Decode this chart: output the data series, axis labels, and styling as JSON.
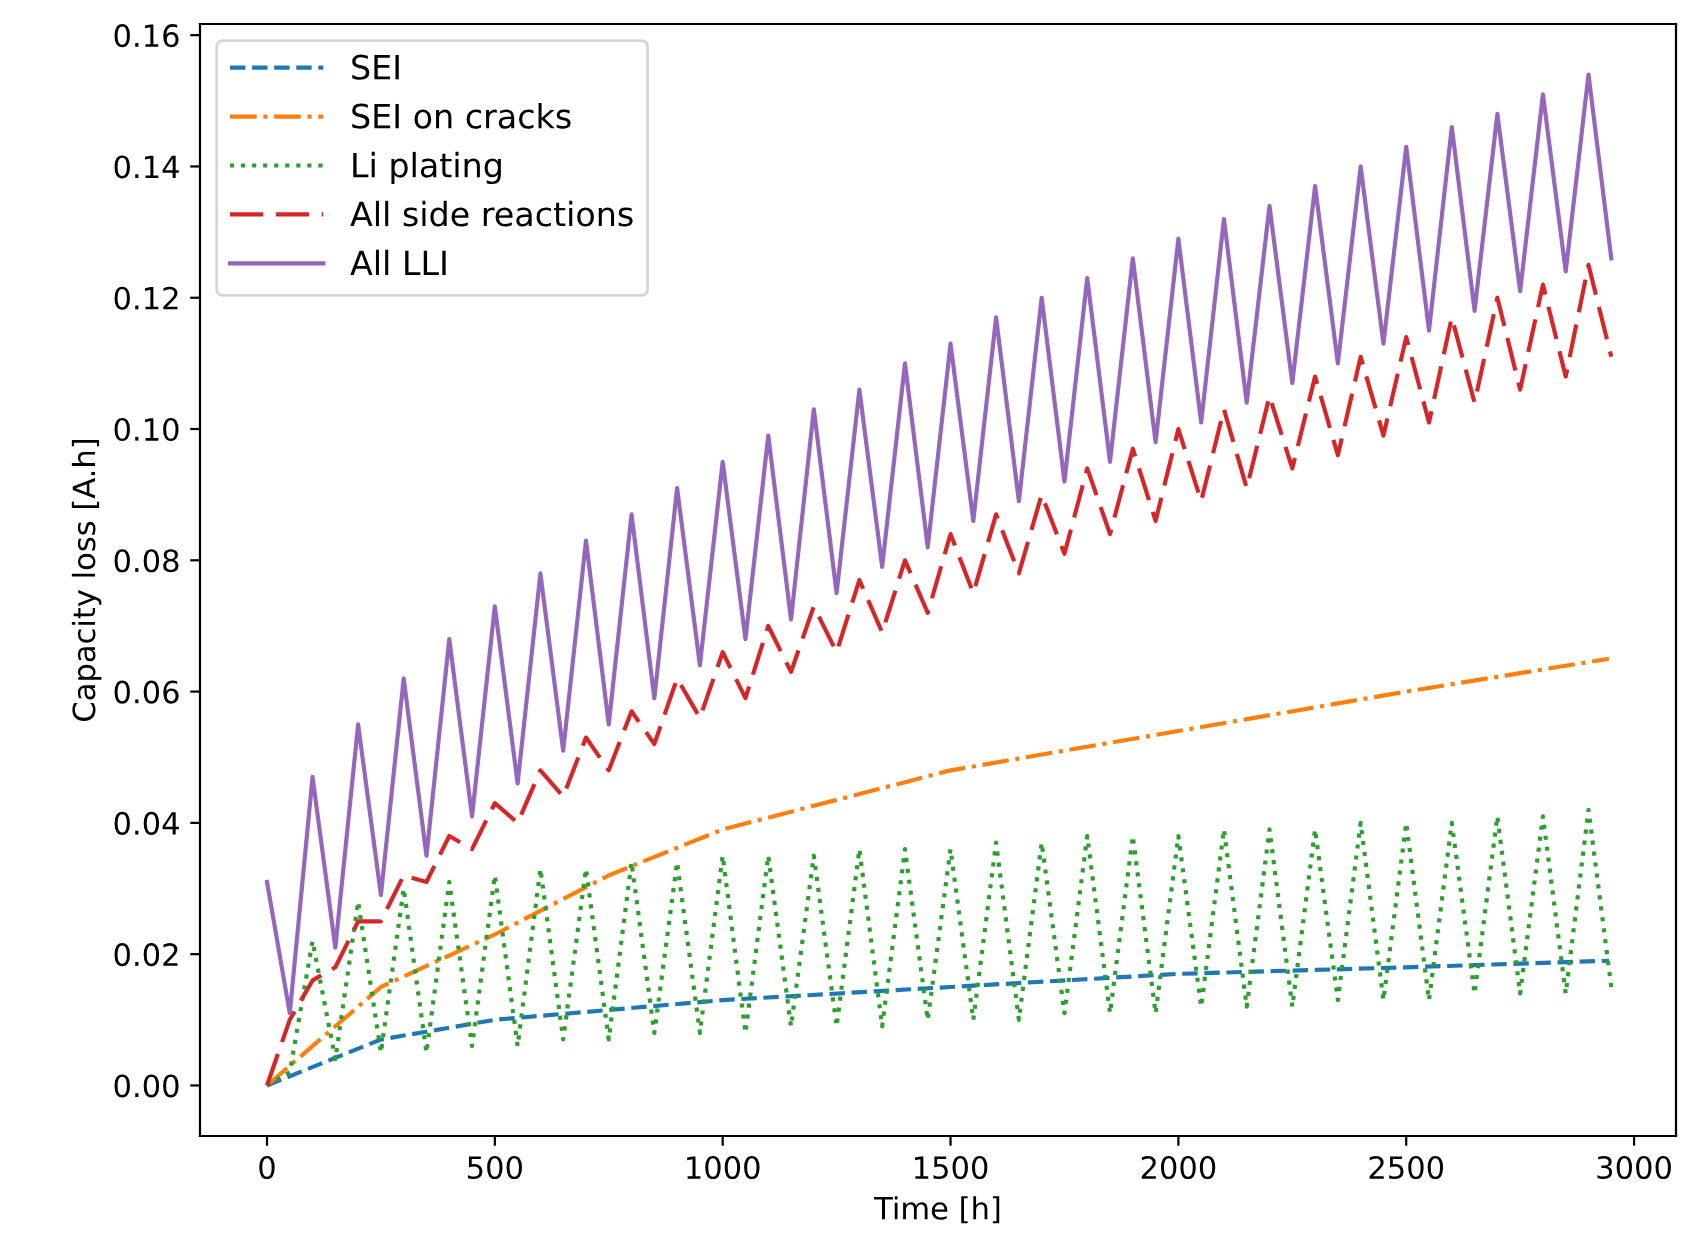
{
  "chart_data": {
    "type": "line",
    "xlabel": "Time [h]",
    "ylabel": "Capacity loss [A.h]",
    "xlim": [
      -147,
      3092
    ],
    "ylim": [
      -0.0077,
      0.1617
    ],
    "xticks": [
      0,
      500,
      1000,
      1500,
      2000,
      2500,
      3000
    ],
    "yticks": [
      {
        "value": 0,
        "label": "0.00"
      },
      {
        "value": 0.02,
        "label": "0.02"
      },
      {
        "value": 0.04,
        "label": "0.04"
      },
      {
        "value": 0.06,
        "label": "0.06"
      },
      {
        "value": 0.08,
        "label": "0.08"
      },
      {
        "value": 0.1,
        "label": "0.10"
      },
      {
        "value": 0.12,
        "label": "0.12"
      },
      {
        "value": 0.14,
        "label": "0.14"
      },
      {
        "value": 0.16,
        "label": "0.16"
      }
    ],
    "grid": false,
    "legend": "top left",
    "marker": "none",
    "series": [
      {
        "name": "SEI",
        "color": "#1f77b4",
        "line_style": "dashed",
        "x": [
          0,
          250,
          500,
          1000,
          1500,
          2000,
          2500,
          2945
        ],
        "values": [
          0,
          0.007,
          0.01,
          0.013,
          0.015,
          0.017,
          0.018,
          0.019
        ]
      },
      {
        "name": "SEI on cracks",
        "color": "#ff7f0e",
        "line_style": "dashdot",
        "x": [
          0,
          250,
          500,
          750,
          1000,
          1500,
          2000,
          2500,
          2945
        ],
        "values": [
          0,
          0.015,
          0.023,
          0.032,
          0.039,
          0.048,
          0.054,
          0.06,
          0.065
        ]
      },
      {
        "name": "Li plating",
        "color": "#2ca02c",
        "line_style": "dotted",
        "x": [
          0,
          50,
          100,
          150,
          200,
          250,
          300,
          350,
          400,
          450,
          500,
          550,
          600,
          650,
          700,
          750,
          800,
          850,
          900,
          950,
          1000,
          1050,
          1100,
          1150,
          1200,
          1250,
          1300,
          1350,
          1400,
          1450,
          1500,
          1550,
          1600,
          1650,
          1700,
          1750,
          1800,
          1850,
          1900,
          1950,
          2000,
          2050,
          2100,
          2150,
          2200,
          2250,
          2300,
          2350,
          2400,
          2450,
          2500,
          2550,
          2600,
          2650,
          2700,
          2750,
          2800,
          2850,
          2900,
          2950
        ],
        "values": [
          0,
          0.002,
          0.022,
          0.004,
          0.028,
          0.005,
          0.03,
          0.005,
          0.031,
          0.006,
          0.032,
          0.006,
          0.033,
          0.007,
          0.033,
          0.007,
          0.034,
          0.008,
          0.034,
          0.008,
          0.035,
          0.008,
          0.035,
          0.009,
          0.035,
          0.009,
          0.036,
          0.009,
          0.036,
          0.01,
          0.036,
          0.01,
          0.037,
          0.01,
          0.037,
          0.011,
          0.038,
          0.011,
          0.038,
          0.011,
          0.038,
          0.012,
          0.039,
          0.012,
          0.039,
          0.012,
          0.039,
          0.013,
          0.04,
          0.013,
          0.04,
          0.013,
          0.04,
          0.014,
          0.041,
          0.014,
          0.041,
          0.014,
          0.042,
          0.015
        ]
      },
      {
        "name": "All side reactions",
        "color": "#d62728",
        "line_style": "longdash",
        "x": [
          0,
          50,
          100,
          150,
          200,
          250,
          300,
          350,
          400,
          450,
          500,
          550,
          600,
          650,
          700,
          750,
          800,
          850,
          900,
          950,
          1000,
          1050,
          1100,
          1150,
          1200,
          1250,
          1300,
          1350,
          1400,
          1450,
          1500,
          1550,
          1600,
          1650,
          1700,
          1750,
          1800,
          1850,
          1900,
          1950,
          2000,
          2050,
          2100,
          2150,
          2200,
          2250,
          2300,
          2350,
          2400,
          2450,
          2500,
          2550,
          2600,
          2650,
          2700,
          2750,
          2800,
          2850,
          2900,
          2950
        ],
        "values": [
          0,
          0.01,
          0.016,
          0.018,
          0.025,
          0.025,
          0.032,
          0.031,
          0.038,
          0.036,
          0.043,
          0.04,
          0.048,
          0.044,
          0.053,
          0.048,
          0.057,
          0.052,
          0.062,
          0.056,
          0.066,
          0.059,
          0.07,
          0.063,
          0.073,
          0.066,
          0.077,
          0.069,
          0.08,
          0.072,
          0.084,
          0.075,
          0.087,
          0.078,
          0.09,
          0.081,
          0.094,
          0.084,
          0.097,
          0.086,
          0.1,
          0.089,
          0.103,
          0.091,
          0.105,
          0.094,
          0.108,
          0.096,
          0.111,
          0.099,
          0.114,
          0.101,
          0.117,
          0.104,
          0.12,
          0.106,
          0.122,
          0.108,
          0.125,
          0.111
        ]
      },
      {
        "name": "All LLI",
        "color": "#9467bd",
        "line_style": "solid",
        "x": [
          0,
          50,
          100,
          150,
          200,
          250,
          300,
          350,
          400,
          450,
          500,
          550,
          600,
          650,
          700,
          750,
          800,
          850,
          900,
          950,
          1000,
          1050,
          1100,
          1150,
          1200,
          1250,
          1300,
          1350,
          1400,
          1450,
          1500,
          1550,
          1600,
          1650,
          1700,
          1750,
          1800,
          1850,
          1900,
          1950,
          2000,
          2050,
          2100,
          2150,
          2200,
          2250,
          2300,
          2350,
          2400,
          2450,
          2500,
          2550,
          2600,
          2650,
          2700,
          2750,
          2800,
          2850,
          2900,
          2950
        ],
        "values": [
          0.031,
          0.011,
          0.047,
          0.021,
          0.055,
          0.029,
          0.062,
          0.035,
          0.068,
          0.041,
          0.073,
          0.046,
          0.078,
          0.051,
          0.083,
          0.055,
          0.087,
          0.059,
          0.091,
          0.064,
          0.095,
          0.068,
          0.099,
          0.071,
          0.103,
          0.075,
          0.106,
          0.079,
          0.11,
          0.082,
          0.113,
          0.086,
          0.117,
          0.089,
          0.12,
          0.092,
          0.123,
          0.095,
          0.126,
          0.098,
          0.129,
          0.101,
          0.132,
          0.104,
          0.134,
          0.107,
          0.137,
          0.11,
          0.14,
          0.113,
          0.143,
          0.115,
          0.146,
          0.118,
          0.148,
          0.121,
          0.151,
          0.124,
          0.154,
          0.126
        ]
      }
    ]
  }
}
